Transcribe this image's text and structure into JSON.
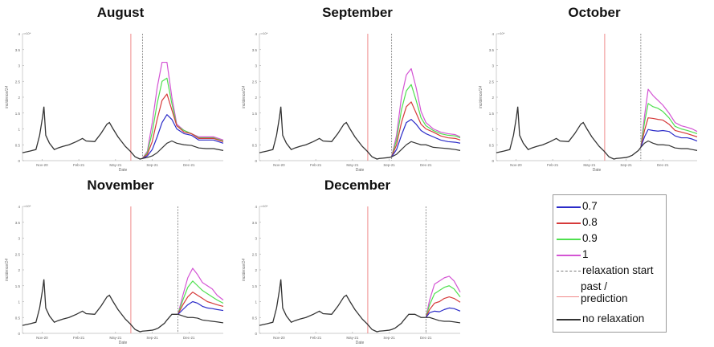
{
  "chart_data": {
    "type": "line",
    "x_unit": "months since Nov-20",
    "xlim": [
      -1.6,
      14.8
    ],
    "ylim": [
      0,
      4
    ],
    "y_multiplier": "×10⁴",
    "yticks": [
      0,
      0.5,
      1,
      1.5,
      2,
      2.5,
      3,
      3.5,
      4
    ],
    "ytick_labels": [
      "0",
      "0.5",
      "1",
      "1.5",
      "2",
      "2.5",
      "3",
      "3.5",
      "4"
    ],
    "xticks": [
      0,
      3,
      6,
      9,
      12
    ],
    "xtick_labels": [
      "Nov-20",
      "Feb-21",
      "May-21",
      "Sep-21",
      "Dec-21"
    ],
    "xlabel": "Date",
    "ylabel": "incidence/14",
    "past_prediction_x": 7.25,
    "history": [
      [
        -1.6,
        0.25
      ],
      [
        -1,
        0.3
      ],
      [
        -0.5,
        0.35
      ],
      [
        -0.2,
        0.8
      ],
      [
        0.05,
        1.4
      ],
      [
        0.15,
        1.7
      ],
      [
        0.3,
        0.8
      ],
      [
        0.6,
        0.55
      ],
      [
        1.0,
        0.35
      ],
      [
        1.3,
        0.4
      ],
      [
        1.7,
        0.45
      ],
      [
        2.2,
        0.5
      ],
      [
        2.8,
        0.6
      ],
      [
        3.3,
        0.7
      ],
      [
        3.6,
        0.62
      ],
      [
        4.3,
        0.6
      ],
      [
        4.8,
        0.85
      ],
      [
        5.3,
        1.15
      ],
      [
        5.5,
        1.2
      ],
      [
        5.8,
        1.0
      ],
      [
        6.2,
        0.75
      ],
      [
        6.8,
        0.45
      ],
      [
        7.2,
        0.3
      ],
      [
        7.6,
        0.12
      ],
      [
        8.0,
        0.05
      ],
      [
        8.2,
        0.07
      ],
      [
        8.5,
        0.08
      ],
      [
        9.0,
        0.1
      ],
      [
        9.2,
        0.12
      ],
      [
        9.5,
        0.17
      ],
      [
        10.0,
        0.32
      ],
      [
        10.2,
        0.42
      ],
      [
        10.6,
        0.6
      ],
      [
        11.1,
        0.6
      ],
      [
        11.6,
        0.5
      ],
      [
        12.0,
        0.5
      ]
    ],
    "series_names": [
      "no relaxation",
      "0.7",
      "0.8",
      "0.9",
      "1"
    ],
    "panels": [
      {
        "title": "August",
        "relaxation_start": 8.2,
        "x": [
          8.2,
          8.6,
          9.0,
          9.4,
          9.8,
          10.2,
          10.6,
          11.0,
          11.6,
          12.2,
          12.8,
          13.4,
          14.0,
          14.8
        ],
        "series": [
          [
            0.07,
            0.1,
            0.15,
            0.25,
            0.4,
            0.55,
            0.62,
            0.55,
            0.5,
            0.48,
            0.4,
            0.38,
            0.38,
            0.32
          ],
          [
            0.07,
            0.15,
            0.35,
            0.75,
            1.2,
            1.45,
            1.3,
            1.0,
            0.85,
            0.8,
            0.65,
            0.65,
            0.65,
            0.55
          ],
          [
            0.07,
            0.2,
            0.6,
            1.3,
            1.9,
            2.1,
            1.6,
            1.1,
            0.9,
            0.85,
            0.7,
            0.7,
            0.7,
            0.6
          ],
          [
            0.07,
            0.25,
            0.9,
            1.8,
            2.5,
            2.6,
            1.8,
            1.1,
            0.95,
            0.85,
            0.72,
            0.72,
            0.72,
            0.62
          ],
          [
            0.07,
            0.3,
            1.2,
            2.3,
            3.1,
            3.1,
            2.0,
            1.15,
            0.95,
            0.85,
            0.75,
            0.75,
            0.75,
            0.65
          ]
        ]
      },
      {
        "title": "September",
        "relaxation_start": 9.2,
        "x": [
          9.2,
          9.6,
          10.0,
          10.4,
          10.8,
          11.2,
          11.6,
          12.0,
          12.6,
          13.2,
          13.8,
          14.4,
          14.8
        ],
        "series": [
          [
            0.12,
            0.2,
            0.35,
            0.5,
            0.6,
            0.55,
            0.5,
            0.5,
            0.42,
            0.4,
            0.38,
            0.35,
            0.32
          ],
          [
            0.12,
            0.35,
            0.8,
            1.2,
            1.3,
            1.15,
            0.95,
            0.85,
            0.75,
            0.65,
            0.6,
            0.58,
            0.55
          ],
          [
            0.12,
            0.5,
            1.2,
            1.7,
            1.85,
            1.5,
            1.15,
            1.0,
            0.9,
            0.78,
            0.72,
            0.7,
            0.65
          ],
          [
            0.12,
            0.65,
            1.6,
            2.2,
            2.4,
            1.9,
            1.35,
            1.1,
            0.95,
            0.85,
            0.8,
            0.78,
            0.72
          ],
          [
            0.12,
            0.8,
            2.0,
            2.7,
            2.9,
            2.3,
            1.55,
            1.2,
            1.0,
            0.9,
            0.85,
            0.82,
            0.75
          ]
        ]
      },
      {
        "title": "October",
        "relaxation_start": 10.2,
        "x": [
          10.2,
          10.5,
          10.8,
          11.2,
          11.6,
          12.0,
          12.5,
          13.0,
          13.5,
          14.0,
          14.4,
          14.8
        ],
        "series": [
          [
            0.42,
            0.55,
            0.62,
            0.55,
            0.5,
            0.5,
            0.48,
            0.4,
            0.38,
            0.38,
            0.35,
            0.32
          ],
          [
            0.42,
            0.75,
            0.98,
            0.95,
            0.93,
            0.95,
            0.92,
            0.78,
            0.72,
            0.72,
            0.68,
            0.62
          ],
          [
            0.42,
            0.95,
            1.35,
            1.33,
            1.3,
            1.28,
            1.15,
            0.95,
            0.9,
            0.85,
            0.8,
            0.75
          ],
          [
            0.42,
            1.2,
            1.8,
            1.7,
            1.65,
            1.55,
            1.35,
            1.08,
            1.0,
            0.95,
            0.9,
            0.85
          ],
          [
            0.42,
            1.4,
            2.25,
            2.05,
            1.9,
            1.75,
            1.5,
            1.2,
            1.1,
            1.05,
            1.0,
            0.92
          ]
        ]
      },
      {
        "title": "November",
        "relaxation_start": 11.1,
        "x": [
          11.1,
          11.5,
          11.9,
          12.3,
          12.7,
          13.1,
          13.5,
          13.9,
          14.3,
          14.8
        ],
        "series": [
          [
            0.6,
            0.55,
            0.5,
            0.5,
            0.48,
            0.42,
            0.4,
            0.38,
            0.36,
            0.33
          ],
          [
            0.6,
            0.75,
            0.9,
            1.0,
            0.95,
            0.85,
            0.8,
            0.78,
            0.75,
            0.72
          ],
          [
            0.6,
            0.9,
            1.15,
            1.3,
            1.2,
            1.1,
            1.0,
            0.95,
            0.9,
            0.85
          ],
          [
            0.6,
            1.05,
            1.45,
            1.65,
            1.5,
            1.35,
            1.25,
            1.15,
            1.05,
            0.95
          ],
          [
            0.6,
            1.2,
            1.75,
            2.05,
            1.85,
            1.6,
            1.5,
            1.4,
            1.2,
            1.05
          ]
        ]
      },
      {
        "title": "December",
        "relaxation_start": 12.0,
        "x": [
          12.0,
          12.3,
          12.7,
          13.1,
          13.5,
          13.9,
          14.3,
          14.8
        ],
        "series": [
          [
            0.5,
            0.5,
            0.45,
            0.4,
            0.38,
            0.38,
            0.36,
            0.33
          ],
          [
            0.5,
            0.65,
            0.7,
            0.68,
            0.75,
            0.8,
            0.78,
            0.7
          ],
          [
            0.5,
            0.75,
            0.95,
            1.0,
            1.1,
            1.15,
            1.1,
            0.98
          ],
          [
            0.5,
            0.9,
            1.25,
            1.35,
            1.45,
            1.5,
            1.4,
            1.15
          ],
          [
            0.5,
            1.05,
            1.55,
            1.65,
            1.75,
            1.8,
            1.65,
            1.3
          ]
        ]
      }
    ],
    "legend": {
      "placement": "bottom-right",
      "items": [
        {
          "label": "0.7",
          "color": "#2b2bc8",
          "style": "solid"
        },
        {
          "label": "0.8",
          "color": "#d63a3a",
          "style": "solid"
        },
        {
          "label": "0.9",
          "color": "#4fe04f",
          "style": "solid"
        },
        {
          "label": "1",
          "color": "#d455d4",
          "style": "solid"
        },
        {
          "label": "relaxation start",
          "color": "#777777",
          "style": "dashed"
        },
        {
          "label": "past / prediction",
          "color": "#f08a8a",
          "style": "solid"
        },
        {
          "label": "no relaxation",
          "color": "#333333",
          "style": "solid"
        }
      ]
    }
  }
}
